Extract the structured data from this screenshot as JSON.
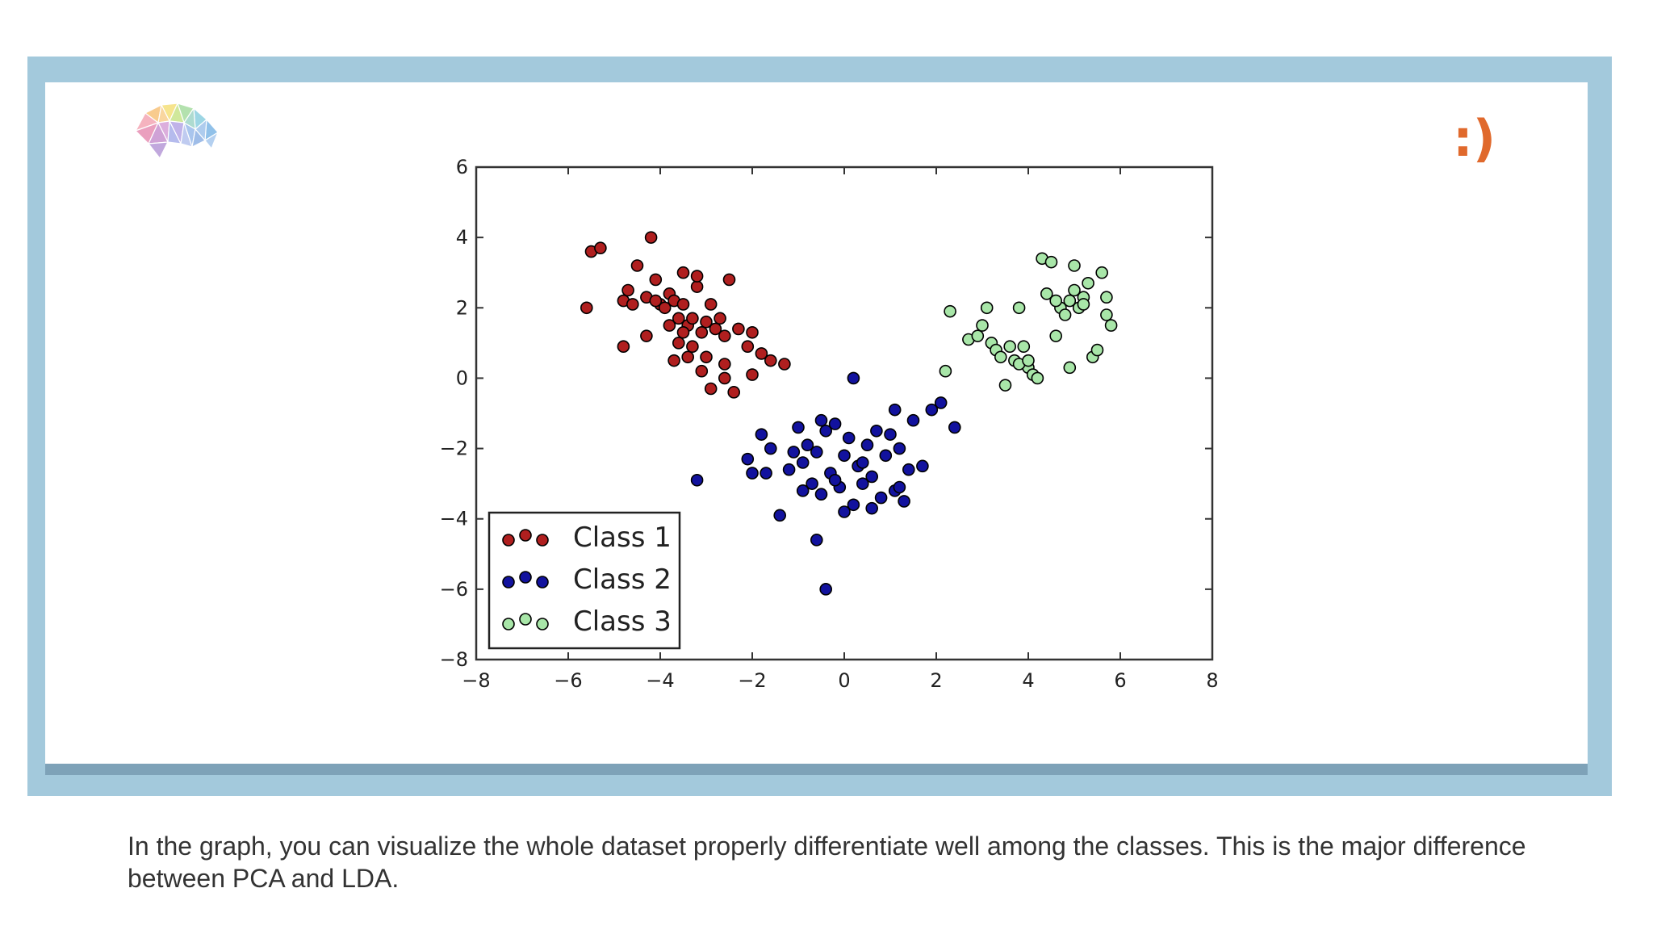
{
  "colors": {
    "frame": "#a3c9dc",
    "class1_fill": "#b01f1f",
    "class2_fill": "#12129e",
    "class3_fill": "#a8e6a8",
    "smiley": "#e0692c"
  },
  "icons": {
    "logo": "brain-icon"
  },
  "smiley_text": ":)",
  "caption": "In the graph, you can visualize the whole dataset properly differentiate well among the classes. This is the major difference between PCA and LDA.",
  "chart_data": {
    "type": "scatter",
    "title": "",
    "xlabel": "",
    "ylabel": "",
    "xlim": [
      -8,
      8
    ],
    "ylim": [
      -8,
      6
    ],
    "xticks": [
      "−8",
      "−6",
      "−4",
      "−2",
      "0",
      "2",
      "4",
      "6",
      "8"
    ],
    "yticks": [
      "−8",
      "−6",
      "−4",
      "−2",
      "0",
      "2",
      "4",
      "6"
    ],
    "legend_position": "lower-left",
    "series": [
      {
        "name": "Class 1",
        "marker": "filled",
        "points": [
          [
            -5.6,
            2.0
          ],
          [
            -5.5,
            3.6
          ],
          [
            -5.3,
            3.7
          ],
          [
            -4.8,
            2.2
          ],
          [
            -4.7,
            2.5
          ],
          [
            -4.6,
            2.1
          ],
          [
            -4.5,
            3.2
          ],
          [
            -4.3,
            2.3
          ],
          [
            -4.2,
            4.0
          ],
          [
            -4.0,
            2.1
          ],
          [
            -4.1,
            2.8
          ],
          [
            -3.9,
            2.0
          ],
          [
            -3.8,
            2.4
          ],
          [
            -3.7,
            2.2
          ],
          [
            -3.6,
            1.7
          ],
          [
            -3.5,
            2.1
          ],
          [
            -3.5,
            3.0
          ],
          [
            -3.4,
            1.5
          ],
          [
            -3.3,
            1.7
          ],
          [
            -3.2,
            2.6
          ],
          [
            -3.1,
            1.3
          ],
          [
            -3.2,
            2.9
          ],
          [
            -3.0,
            1.6
          ],
          [
            -2.9,
            2.1
          ],
          [
            -2.8,
            1.4
          ],
          [
            -2.7,
            1.7
          ],
          [
            -2.6,
            1.2
          ],
          [
            -2.5,
            2.8
          ],
          [
            -2.3,
            1.4
          ],
          [
            -2.1,
            0.9
          ],
          [
            -2.0,
            1.3
          ],
          [
            -1.8,
            0.7
          ],
          [
            -1.6,
            0.5
          ],
          [
            -1.3,
            0.4
          ],
          [
            -3.6,
            1.0
          ],
          [
            -3.4,
            0.6
          ],
          [
            -3.1,
            0.2
          ],
          [
            -2.9,
            -0.3
          ],
          [
            -2.6,
            0.0
          ],
          [
            -3.3,
            0.9
          ],
          [
            -4.8,
            0.9
          ],
          [
            -4.3,
            1.2
          ],
          [
            -3.0,
            0.6
          ],
          [
            -2.4,
            -0.4
          ],
          [
            -2.0,
            0.1
          ],
          [
            -3.8,
            1.5
          ],
          [
            -4.1,
            2.2
          ],
          [
            -3.5,
            1.3
          ],
          [
            -2.6,
            0.4
          ],
          [
            -3.7,
            0.5
          ]
        ]
      },
      {
        "name": "Class 2",
        "marker": "filled",
        "points": [
          [
            -3.2,
            -2.9
          ],
          [
            -2.1,
            -2.3
          ],
          [
            -2.0,
            -2.7
          ],
          [
            -1.8,
            -1.6
          ],
          [
            -1.6,
            -2.0
          ],
          [
            -1.4,
            -3.9
          ],
          [
            -1.2,
            -2.6
          ],
          [
            -1.0,
            -1.4
          ],
          [
            -0.9,
            -2.4
          ],
          [
            -0.8,
            -1.9
          ],
          [
            -0.7,
            -3.0
          ],
          [
            -0.6,
            -2.1
          ],
          [
            -0.5,
            -3.3
          ],
          [
            -0.4,
            -1.5
          ],
          [
            -0.3,
            -2.7
          ],
          [
            -0.2,
            -1.3
          ],
          [
            -0.1,
            -3.1
          ],
          [
            0.0,
            -2.2
          ],
          [
            0.1,
            -1.7
          ],
          [
            0.2,
            -3.6
          ],
          [
            0.3,
            -2.5
          ],
          [
            0.4,
            -3.0
          ],
          [
            0.5,
            -1.9
          ],
          [
            0.6,
            -2.8
          ],
          [
            0.7,
            -1.5
          ],
          [
            0.8,
            -3.4
          ],
          [
            0.9,
            -2.2
          ],
          [
            1.0,
            -1.6
          ],
          [
            1.1,
            -3.2
          ],
          [
            1.2,
            -2.0
          ],
          [
            1.3,
            -3.5
          ],
          [
            1.4,
            -2.6
          ],
          [
            1.5,
            -1.2
          ],
          [
            1.7,
            -2.5
          ],
          [
            1.9,
            -0.9
          ],
          [
            2.1,
            -0.7
          ],
          [
            2.4,
            -1.4
          ],
          [
            0.2,
            0.0
          ],
          [
            -0.6,
            -4.6
          ],
          [
            -0.4,
            -6.0
          ],
          [
            -1.7,
            -2.7
          ],
          [
            -0.9,
            -3.2
          ],
          [
            0.0,
            -3.8
          ],
          [
            1.1,
            -0.9
          ],
          [
            -0.2,
            -2.9
          ],
          [
            0.6,
            -3.7
          ],
          [
            -1.1,
            -2.1
          ],
          [
            0.4,
            -2.4
          ],
          [
            -0.5,
            -1.2
          ],
          [
            1.2,
            -3.1
          ]
        ]
      },
      {
        "name": "Class 3",
        "marker": "open",
        "points": [
          [
            2.2,
            0.2
          ],
          [
            2.3,
            1.9
          ],
          [
            2.7,
            1.1
          ],
          [
            2.9,
            1.2
          ],
          [
            3.0,
            1.5
          ],
          [
            3.1,
            2.0
          ],
          [
            3.2,
            1.0
          ],
          [
            3.3,
            0.8
          ],
          [
            3.4,
            0.6
          ],
          [
            3.5,
            -0.2
          ],
          [
            3.6,
            0.9
          ],
          [
            3.7,
            0.5
          ],
          [
            3.8,
            2.0
          ],
          [
            3.9,
            0.9
          ],
          [
            4.0,
            0.3
          ],
          [
            4.1,
            0.1
          ],
          [
            4.3,
            3.4
          ],
          [
            4.4,
            2.4
          ],
          [
            4.5,
            3.3
          ],
          [
            4.6,
            1.2
          ],
          [
            4.7,
            2.0
          ],
          [
            4.8,
            1.8
          ],
          [
            4.9,
            2.2
          ],
          [
            5.0,
            2.5
          ],
          [
            5.0,
            3.2
          ],
          [
            5.1,
            2.0
          ],
          [
            5.2,
            2.3
          ],
          [
            5.3,
            2.7
          ],
          [
            5.4,
            0.6
          ],
          [
            5.5,
            0.8
          ],
          [
            5.6,
            3.0
          ],
          [
            5.7,
            2.3
          ],
          [
            5.8,
            1.5
          ],
          [
            4.2,
            0.0
          ],
          [
            4.6,
            2.2
          ],
          [
            4.9,
            0.3
          ],
          [
            5.2,
            2.1
          ],
          [
            3.8,
            0.4
          ],
          [
            4.0,
            0.5
          ],
          [
            5.7,
            1.8
          ]
        ]
      }
    ]
  }
}
